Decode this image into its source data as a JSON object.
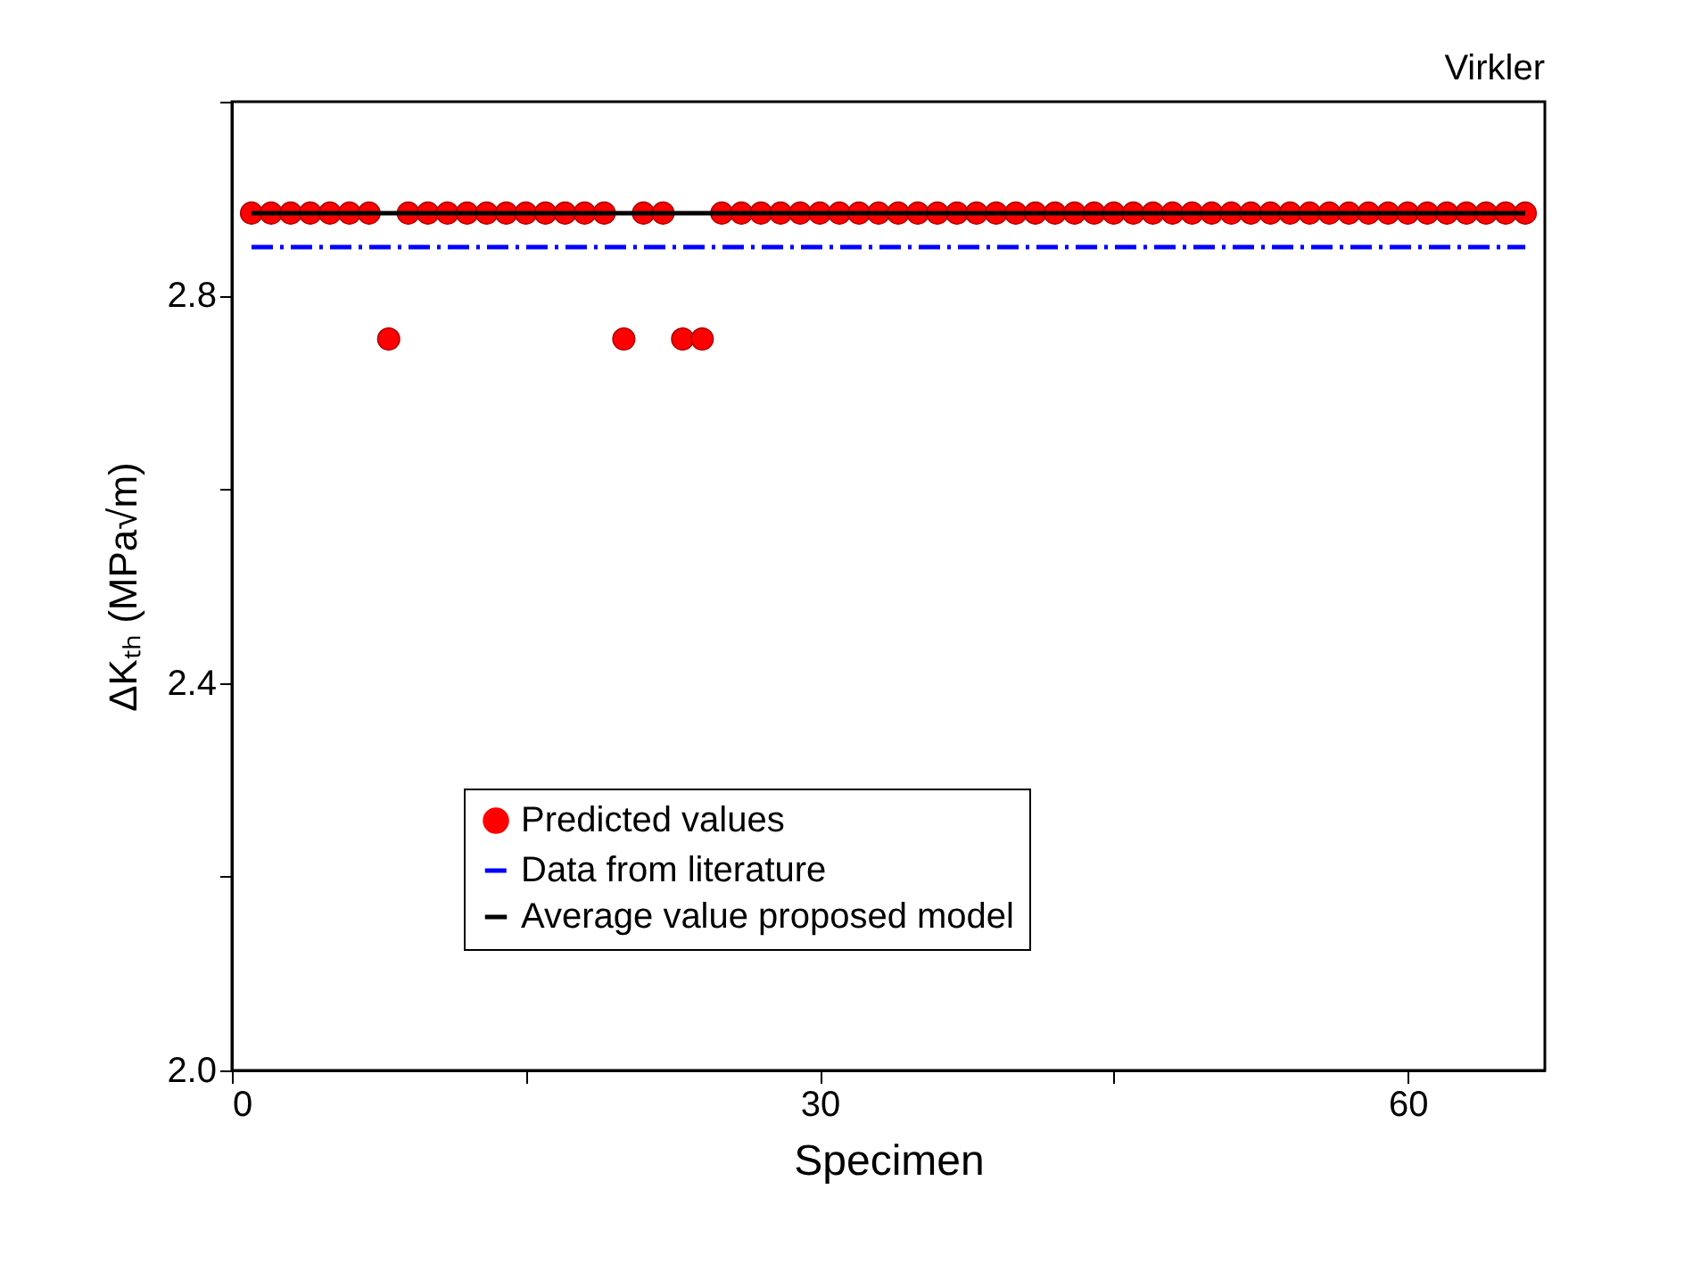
{
  "chart_data": {
    "type": "scatter",
    "title": "Virkler",
    "xlabel": "Specimen",
    "ylabel": "ΔKₜₕ (MPa√m)",
    "xlim": [
      0,
      67
    ],
    "xticks": [
      0,
      {
        "value": 15,
        "label": null
      },
      30,
      {
        "value": 45,
        "label": null
      },
      60
    ],
    "ylim": [
      2.0,
      3.0
    ],
    "yticks": [
      {
        "value": 2.0,
        "label": "2.0"
      },
      {
        "value": 2.2,
        "label": null
      },
      2.4,
      {
        "value": 2.6,
        "label": null
      },
      2.8,
      {
        "value": 3.0,
        "label": null
      }
    ],
    "grid": false,
    "legend": "bottom",
    "series": [
      {
        "name": "Predicted values",
        "color": "#ff0000",
        "marker": "circle",
        "x": [
          1,
          2,
          3,
          4,
          5,
          6,
          7,
          8,
          9,
          10,
          11,
          12,
          13,
          14,
          15,
          16,
          17,
          18,
          19,
          20,
          21,
          22,
          23,
          24,
          25,
          26,
          27,
          28,
          29,
          30,
          31,
          32,
          33,
          34,
          35,
          36,
          37,
          38,
          39,
          40,
          41,
          42,
          43,
          44,
          45,
          46,
          47,
          48,
          49,
          50,
          51,
          52,
          53,
          54,
          55,
          56,
          57,
          58,
          59,
          60,
          61,
          62,
          63,
          64,
          65,
          66
        ],
        "values": [
          2.885,
          2.885,
          2.885,
          2.885,
          2.885,
          2.885,
          2.885,
          2.755,
          2.885,
          2.885,
          2.885,
          2.885,
          2.885,
          2.885,
          2.885,
          2.885,
          2.885,
          2.885,
          2.885,
          2.755,
          2.885,
          2.885,
          2.755,
          2.755,
          2.885,
          2.885,
          2.885,
          2.885,
          2.885,
          2.885,
          2.885,
          2.885,
          2.885,
          2.885,
          2.885,
          2.885,
          2.885,
          2.885,
          2.885,
          2.885,
          2.885,
          2.885,
          2.885,
          2.885,
          2.885,
          2.885,
          2.885,
          2.885,
          2.885,
          2.885,
          2.885,
          2.885,
          2.885,
          2.885,
          2.885,
          2.885,
          2.885,
          2.885,
          2.885,
          2.885,
          2.885,
          2.885,
          2.885,
          2.885,
          2.885,
          2.885
        ]
      },
      {
        "name": "Data from literature",
        "color": "#0000ff",
        "type": "line",
        "line_style": "dashed",
        "x": [
          1,
          66
        ],
        "values": [
          2.85,
          2.85
        ]
      },
      {
        "name": "Average value proposed model",
        "color": "#000000",
        "type": "line",
        "line_style": "solid",
        "x": [
          1,
          66
        ],
        "values": [
          2.885,
          2.885
        ]
      }
    ]
  }
}
